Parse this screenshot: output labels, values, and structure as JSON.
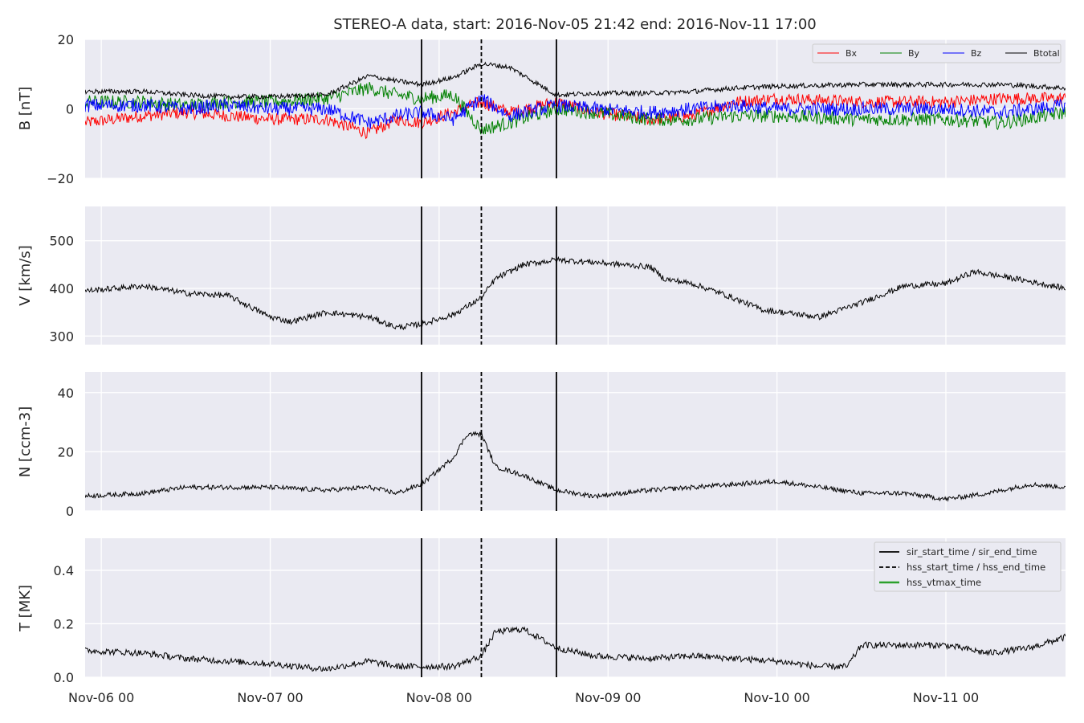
{
  "chart_data": {
    "type": "line",
    "title": "STEREO-A data, start: 2016-Nov-05 21:42  end: 2016-Nov-11 17:00",
    "x_range": [
      "2016-11-05 21:42",
      "2016-11-11 17:00"
    ],
    "x_ticks": [
      {
        "label": "Nov-06 00",
        "time": "2016-11-06 00:00"
      },
      {
        "label": "Nov-07 00",
        "time": "2016-11-07 00:00"
      },
      {
        "label": "Nov-08 00",
        "time": "2016-11-08 00:00"
      },
      {
        "label": "Nov-09 00",
        "time": "2016-11-09 00:00"
      },
      {
        "label": "Nov-10 00",
        "time": "2016-11-10 00:00"
      },
      {
        "label": "Nov-11 00",
        "time": "2016-11-11 00:00"
      }
    ],
    "event_lines": [
      {
        "name": "sir_start_time",
        "time": "2016-11-07 21:30",
        "style": "solid"
      },
      {
        "name": "hss_start_time",
        "time": "2016-11-08 06:00",
        "style": "dashed"
      },
      {
        "name": "sir_end_time",
        "time": "2016-11-08 16:40",
        "style": "solid"
      }
    ],
    "panels": [
      {
        "ylabel": "B [nT]",
        "ylim": [
          -20,
          20
        ],
        "yticks": [
          -20,
          0,
          20
        ],
        "ytick_labels": [
          "−20",
          "0",
          "20"
        ],
        "legend": {
          "position": "top-right",
          "entries": [
            "Bx",
            "By",
            "Bz",
            "Btotal"
          ]
        },
        "series": [
          {
            "name": "Bx",
            "color": "#ff0000",
            "noise": 1.8,
            "points": [
              [
                "2016-11-05 21:42",
                -4
              ],
              [
                "2016-11-06 06:00",
                -2
              ],
              [
                "2016-11-06 12:00",
                -1
              ],
              [
                "2016-11-06 18:00",
                -2
              ],
              [
                "2016-11-07 00:00",
                -3
              ],
              [
                "2016-11-07 08:00",
                -3
              ],
              [
                "2016-11-07 14:00",
                -7
              ],
              [
                "2016-11-07 18:00",
                -3
              ],
              [
                "2016-11-07 21:30",
                -4
              ],
              [
                "2016-11-08 02:00",
                -1
              ],
              [
                "2016-11-08 06:00",
                2
              ],
              [
                "2016-11-08 10:00",
                -1
              ],
              [
                "2016-11-08 16:40",
                2
              ],
              [
                "2016-11-08 22:00",
                -1
              ],
              [
                "2016-11-09 06:00",
                -3
              ],
              [
                "2016-11-09 12:00",
                -2
              ],
              [
                "2016-11-09 18:00",
                2
              ],
              [
                "2016-11-10 00:00",
                3
              ],
              [
                "2016-11-10 12:00",
                2
              ],
              [
                "2016-11-11 00:00",
                2
              ],
              [
                "2016-11-11 08:00",
                3
              ],
              [
                "2016-11-11 17:00",
                3
              ]
            ]
          },
          {
            "name": "By",
            "color": "#008000",
            "noise": 2.0,
            "points": [
              [
                "2016-11-05 21:42",
                2
              ],
              [
                "2016-11-06 06:00",
                2
              ],
              [
                "2016-11-06 12:00",
                1
              ],
              [
                "2016-11-06 18:00",
                2
              ],
              [
                "2016-11-07 00:00",
                2
              ],
              [
                "2016-11-07 08:00",
                3
              ],
              [
                "2016-11-07 14:00",
                6
              ],
              [
                "2016-11-07 18:00",
                4
              ],
              [
                "2016-11-07 21:30",
                3
              ],
              [
                "2016-11-08 02:00",
                4
              ],
              [
                "2016-11-08 06:00",
                -6
              ],
              [
                "2016-11-08 10:00",
                -4
              ],
              [
                "2016-11-08 16:40",
                0
              ],
              [
                "2016-11-08 22:00",
                -1
              ],
              [
                "2016-11-09 06:00",
                -3
              ],
              [
                "2016-11-09 12:00",
                -3
              ],
              [
                "2016-11-09 18:00",
                -2
              ],
              [
                "2016-11-10 00:00",
                -2
              ],
              [
                "2016-11-10 12:00",
                -3
              ],
              [
                "2016-11-11 00:00",
                -3
              ],
              [
                "2016-11-11 08:00",
                -4
              ],
              [
                "2016-11-11 17:00",
                -1
              ]
            ]
          },
          {
            "name": "Bz",
            "color": "#0000ff",
            "noise": 2.0,
            "points": [
              [
                "2016-11-05 21:42",
                1
              ],
              [
                "2016-11-06 06:00",
                1
              ],
              [
                "2016-11-06 12:00",
                0
              ],
              [
                "2016-11-06 18:00",
                1
              ],
              [
                "2016-11-07 00:00",
                0
              ],
              [
                "2016-11-07 08:00",
                0
              ],
              [
                "2016-11-07 14:00",
                -4
              ],
              [
                "2016-11-07 18:00",
                -2
              ],
              [
                "2016-11-07 21:30",
                -1
              ],
              [
                "2016-11-08 02:00",
                -3
              ],
              [
                "2016-11-08 06:00",
                3
              ],
              [
                "2016-11-08 10:00",
                -2
              ],
              [
                "2016-11-08 16:40",
                1
              ],
              [
                "2016-11-08 22:00",
                0
              ],
              [
                "2016-11-09 06:00",
                -1
              ],
              [
                "2016-11-09 12:00",
                0
              ],
              [
                "2016-11-09 18:00",
                1
              ],
              [
                "2016-11-10 00:00",
                0
              ],
              [
                "2016-11-10 12:00",
                0
              ],
              [
                "2016-11-11 00:00",
                0
              ],
              [
                "2016-11-11 08:00",
                -1
              ],
              [
                "2016-11-11 17:00",
                1
              ]
            ]
          },
          {
            "name": "Btotal",
            "color": "#000000",
            "noise": 0.7,
            "points": [
              [
                "2016-11-05 21:42",
                5
              ],
              [
                "2016-11-06 06:00",
                5
              ],
              [
                "2016-11-06 12:00",
                4
              ],
              [
                "2016-11-06 18:00",
                3.5
              ],
              [
                "2016-11-07 00:00",
                3.5
              ],
              [
                "2016-11-07 08:00",
                4
              ],
              [
                "2016-11-07 14:00",
                9.5
              ],
              [
                "2016-11-07 18:00",
                8
              ],
              [
                "2016-11-07 21:30",
                7
              ],
              [
                "2016-11-08 02:00",
                9
              ],
              [
                "2016-11-08 06:00",
                13
              ],
              [
                "2016-11-08 10:00",
                12
              ],
              [
                "2016-11-08 16:40",
                4
              ],
              [
                "2016-11-08 22:00",
                4.5
              ],
              [
                "2016-11-09 06:00",
                4.5
              ],
              [
                "2016-11-09 12:00",
                5
              ],
              [
                "2016-11-09 18:00",
                6
              ],
              [
                "2016-11-10 00:00",
                6.5
              ],
              [
                "2016-11-10 12:00",
                7
              ],
              [
                "2016-11-11 00:00",
                7
              ],
              [
                "2016-11-11 08:00",
                7
              ],
              [
                "2016-11-11 17:00",
                6
              ]
            ]
          }
        ]
      },
      {
        "ylabel": "V [km/s]",
        "ylim": [
          282,
          572
        ],
        "yticks": [
          300,
          400,
          500
        ],
        "ytick_labels": [
          "300",
          "400",
          "500"
        ],
        "series": [
          {
            "name": "V",
            "color": "#000000",
            "noise": 6,
            "points": [
              [
                "2016-11-05 21:42",
                395
              ],
              [
                "2016-11-06 06:00",
                405
              ],
              [
                "2016-11-06 12:00",
                390
              ],
              [
                "2016-11-06 18:00",
                385
              ],
              [
                "2016-11-07 00:00",
                340
              ],
              [
                "2016-11-07 03:00",
                330
              ],
              [
                "2016-11-07 08:00",
                350
              ],
              [
                "2016-11-07 14:00",
                340
              ],
              [
                "2016-11-07 18:00",
                318
              ],
              [
                "2016-11-07 21:30",
                325
              ],
              [
                "2016-11-08 02:00",
                345
              ],
              [
                "2016-11-08 06:00",
                380
              ],
              [
                "2016-11-08 08:00",
                420
              ],
              [
                "2016-11-08 12:00",
                450
              ],
              [
                "2016-11-08 16:40",
                460
              ],
              [
                "2016-11-08 22:00",
                455
              ],
              [
                "2016-11-09 06:00",
                445
              ],
              [
                "2016-11-09 08:00",
                420
              ],
              [
                "2016-11-09 12:00",
                410
              ],
              [
                "2016-11-09 16:00",
                390
              ],
              [
                "2016-11-09 22:00",
                355
              ],
              [
                "2016-11-10 06:00",
                340
              ],
              [
                "2016-11-10 12:00",
                370
              ],
              [
                "2016-11-10 18:00",
                405
              ],
              [
                "2016-11-11 00:00",
                410
              ],
              [
                "2016-11-11 04:00",
                435
              ],
              [
                "2016-11-11 10:00",
                420
              ],
              [
                "2016-11-11 17:00",
                400
              ]
            ]
          }
        ]
      },
      {
        "ylabel": "N [ccm-3]",
        "ylim": [
          0,
          47
        ],
        "yticks": [
          0,
          20,
          40
        ],
        "ytick_labels": [
          "0",
          "20",
          "40"
        ],
        "series": [
          {
            "name": "N",
            "color": "#000000",
            "noise": 0.8,
            "points": [
              [
                "2016-11-05 21:42",
                5
              ],
              [
                "2016-11-06 06:00",
                6
              ],
              [
                "2016-11-06 12:00",
                8
              ],
              [
                "2016-11-06 18:00",
                8
              ],
              [
                "2016-11-07 00:00",
                8
              ],
              [
                "2016-11-07 08:00",
                7
              ],
              [
                "2016-11-07 14:00",
                8
              ],
              [
                "2016-11-07 18:00",
                6
              ],
              [
                "2016-11-07 21:30",
                9
              ],
              [
                "2016-11-08 02:00",
                18
              ],
              [
                "2016-11-08 04:00",
                26
              ],
              [
                "2016-11-08 06:00",
                26
              ],
              [
                "2016-11-08 08:00",
                15
              ],
              [
                "2016-11-08 12:00",
                12
              ],
              [
                "2016-11-08 16:40",
                7
              ],
              [
                "2016-11-08 22:00",
                5
              ],
              [
                "2016-11-09 06:00",
                7
              ],
              [
                "2016-11-09 12:00",
                8
              ],
              [
                "2016-11-09 18:00",
                9
              ],
              [
                "2016-11-10 00:00",
                10
              ],
              [
                "2016-11-10 06:00",
                8
              ],
              [
                "2016-11-10 12:00",
                6
              ],
              [
                "2016-11-10 18:00",
                6
              ],
              [
                "2016-11-11 00:00",
                4
              ],
              [
                "2016-11-11 06:00",
                6
              ],
              [
                "2016-11-11 12:00",
                9
              ],
              [
                "2016-11-11 17:00",
                8
              ]
            ]
          }
        ]
      },
      {
        "ylabel": "T [MK]",
        "ylim": [
          0,
          0.52
        ],
        "yticks": [
          0.0,
          0.2,
          0.4
        ],
        "ytick_labels": [
          "0.0",
          "0.2",
          "0.4"
        ],
        "legend": {
          "position": "top-right",
          "entries": [
            "sir_start_time / sir_end_time",
            "hss_start_time / hss_end_time",
            "hss_vtmax_time"
          ]
        },
        "series": [
          {
            "name": "T",
            "color": "#000000",
            "noise": 0.012,
            "points": [
              [
                "2016-11-05 21:42",
                0.1
              ],
              [
                "2016-11-06 06:00",
                0.09
              ],
              [
                "2016-11-06 12:00",
                0.07
              ],
              [
                "2016-11-06 18:00",
                0.06
              ],
              [
                "2016-11-07 00:00",
                0.05
              ],
              [
                "2016-11-07 08:00",
                0.03
              ],
              [
                "2016-11-07 14:00",
                0.06
              ],
              [
                "2016-11-07 18:00",
                0.04
              ],
              [
                "2016-11-07 21:30",
                0.04
              ],
              [
                "2016-11-08 02:00",
                0.04
              ],
              [
                "2016-11-08 06:00",
                0.08
              ],
              [
                "2016-11-08 08:00",
                0.17
              ],
              [
                "2016-11-08 12:00",
                0.18
              ],
              [
                "2016-11-08 16:40",
                0.11
              ],
              [
                "2016-11-08 22:00",
                0.08
              ],
              [
                "2016-11-09 06:00",
                0.07
              ],
              [
                "2016-11-09 12:00",
                0.08
              ],
              [
                "2016-11-09 18:00",
                0.07
              ],
              [
                "2016-11-10 00:00",
                0.06
              ],
              [
                "2016-11-10 06:00",
                0.04
              ],
              [
                "2016-11-10 10:00",
                0.04
              ],
              [
                "2016-11-10 12:00",
                0.12
              ],
              [
                "2016-11-10 18:00",
                0.12
              ],
              [
                "2016-11-11 00:00",
                0.12
              ],
              [
                "2016-11-11 06:00",
                0.09
              ],
              [
                "2016-11-11 12:00",
                0.11
              ],
              [
                "2016-11-11 17:00",
                0.15
              ]
            ]
          }
        ]
      }
    ],
    "event_legend_colors": {
      "sir": "#000000",
      "hss": "#000000",
      "vtmax": "#2ca02c"
    }
  }
}
